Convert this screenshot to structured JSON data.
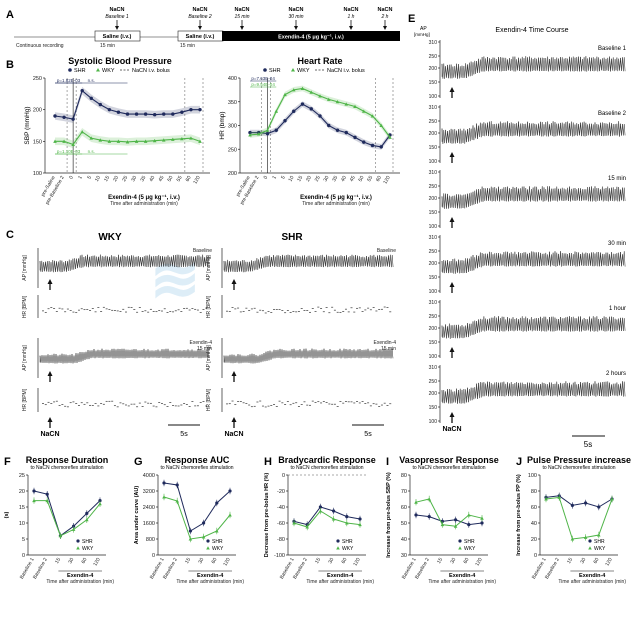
{
  "watermark": "meditlevant",
  "panel_a": {
    "label": "A",
    "events": [
      {
        "name": "NaCN",
        "sub": "Baseline 1"
      },
      {
        "name": "NaCN",
        "sub": "Baseline 2"
      },
      {
        "name": "NaCN",
        "sub": "15 min"
      },
      {
        "name": "NaCN",
        "sub": "30 min"
      },
      {
        "name": "NaCN",
        "sub": "1 h"
      },
      {
        "name": "NaCN",
        "sub": "2 h"
      }
    ],
    "saline1": "Saline (i.v.)",
    "saline2": "Saline (i.v.)",
    "exendin": "Exendin-4 (5 μg kg⁻¹, i.v.)",
    "cont": "Continuous recording",
    "dur1": "15 min",
    "dur2": "15 min"
  },
  "panel_b": {
    "label": "B",
    "sbp_title": "Systolic Blood Pressure",
    "hr_title": "Heart Rate",
    "legend": {
      "shr": "SHR",
      "wky": "WKY",
      "bolus": "NaCN i.v. bolus"
    },
    "sbp_ylabel": "SBP (mmHg)",
    "hr_ylabel": "HR (bmp)",
    "xlabel": "Exendin-4 (5 μg kg⁻¹, i.v.)",
    "xsub": "Time after administration (min)",
    "sbp_pvals": [
      "p=1.82E-03",
      "n.s.",
      "p=1.10E-03",
      "n.s."
    ],
    "hr_pvals": [
      "p=7.63E-04",
      "p=9.54E-04"
    ],
    "pre": [
      "pre-Saline",
      "pre-Baseline 2"
    ],
    "xticks": [
      "0",
      "1",
      "5",
      "10",
      "15",
      "20",
      "25",
      "30",
      "35",
      "40",
      "45",
      "50",
      "55",
      "60",
      "120"
    ]
  },
  "chart_data": [
    {
      "type": "line",
      "title": "Systolic Blood Pressure",
      "ylabel": "SBP (mmHg)",
      "ylim": [
        100,
        250
      ],
      "x": [
        "pre-Saline",
        "pre-Baseline 2",
        "0",
        "1",
        "5",
        "10",
        "15",
        "20",
        "25",
        "30",
        "35",
        "40",
        "45",
        "50",
        "55",
        "60",
        "120"
      ],
      "series": [
        {
          "name": "SHR",
          "values": [
            190,
            188,
            185,
            230,
            218,
            208,
            200,
            196,
            193,
            193,
            193,
            192,
            193,
            193,
            196,
            200,
            200
          ]
        },
        {
          "name": "WKY",
          "values": [
            150,
            150,
            145,
            165,
            155,
            152,
            150,
            150,
            149,
            150,
            150,
            151,
            152,
            153,
            154,
            155,
            150
          ]
        }
      ]
    },
    {
      "type": "line",
      "title": "Heart Rate",
      "ylabel": "HR (bmp)",
      "ylim": [
        200,
        400
      ],
      "x": [
        "pre-Saline",
        "pre-Baseline 2",
        "0",
        "1",
        "5",
        "10",
        "15",
        "20",
        "25",
        "30",
        "35",
        "40",
        "45",
        "50",
        "55",
        "60",
        "120"
      ],
      "series": [
        {
          "name": "SHR",
          "values": [
            285,
            285,
            283,
            290,
            310,
            330,
            345,
            335,
            320,
            300,
            290,
            285,
            275,
            265,
            258,
            255,
            280
          ]
        },
        {
          "name": "WKY",
          "values": [
            280,
            282,
            290,
            330,
            365,
            375,
            378,
            370,
            362,
            355,
            350,
            345,
            340,
            330,
            320,
            300,
            275
          ]
        }
      ]
    },
    {
      "type": "line",
      "title": "Response Duration",
      "ylabel": "(s)",
      "ylim": [
        0,
        25
      ],
      "x": [
        "Baseline 1",
        "Baseline 2",
        "15",
        "30",
        "60",
        "120"
      ],
      "series": [
        {
          "name": "SHR",
          "values": [
            20,
            19,
            6,
            9,
            13,
            17
          ]
        },
        {
          "name": "WKY",
          "values": [
            17,
            17,
            6,
            8,
            11,
            16
          ]
        }
      ]
    },
    {
      "type": "line",
      "title": "Response AUC",
      "ylabel": "Area under curve (AU)",
      "ylim": [
        0,
        4000
      ],
      "x": [
        "Baseline 1",
        "Baseline 2",
        "15",
        "30",
        "60",
        "120"
      ],
      "series": [
        {
          "name": "SHR",
          "values": [
            3600,
            3500,
            1200,
            1600,
            2600,
            3200
          ]
        },
        {
          "name": "WKY",
          "values": [
            2900,
            2700,
            800,
            900,
            1200,
            2000
          ]
        }
      ]
    },
    {
      "type": "line",
      "title": "Bradycardic Response",
      "ylabel": "Decrease from pre-bolus HR (%)",
      "ylim": [
        -100,
        0
      ],
      "x": [
        "Baseline 1",
        "Baseline 2",
        "15",
        "30",
        "60",
        "120"
      ],
      "series": [
        {
          "name": "SHR",
          "values": [
            -58,
            -62,
            -40,
            -45,
            -52,
            -55
          ]
        },
        {
          "name": "WKY",
          "values": [
            -60,
            -65,
            -45,
            -55,
            -60,
            -62
          ]
        }
      ]
    },
    {
      "type": "line",
      "title": "Vasopressor Response",
      "ylabel": "Increase from pre-bolus SBP (%)",
      "ylim": [
        30,
        80
      ],
      "x": [
        "Baseline 1",
        "Baseline 2",
        "15",
        "30",
        "60",
        "120"
      ],
      "series": [
        {
          "name": "SHR",
          "values": [
            55,
            54,
            51,
            52,
            49,
            50
          ]
        },
        {
          "name": "WKY",
          "values": [
            63,
            65,
            49,
            48,
            55,
            53
          ]
        }
      ]
    },
    {
      "type": "line",
      "title": "Pulse Pressure increase",
      "ylabel": "Increase from pre-bolus PP (%)",
      "ylim": [
        0,
        100
      ],
      "x": [
        "Baseline 1",
        "Baseline 2",
        "15",
        "30",
        "60",
        "120"
      ],
      "series": [
        {
          "name": "SHR",
          "values": [
            72,
            74,
            62,
            65,
            60,
            70
          ]
        },
        {
          "name": "WKY",
          "values": [
            70,
            72,
            20,
            22,
            25,
            70
          ]
        }
      ]
    }
  ],
  "panel_c": {
    "label": "C",
    "wky": "WKY",
    "shr": "SHR",
    "ap": "AP [mmHg]",
    "hr": "HR [BPM]",
    "baseline": "Baseline",
    "ex1": "Exendin-4",
    "ex2": "15 min",
    "nacn": "NaCN",
    "scale": "5s"
  },
  "panel_e": {
    "label": "E",
    "title": "Exendin-4 Time Course",
    "ap": "AP",
    "unit": "[mmHg]",
    "rows": [
      "Baseline 1",
      "Baseline 2",
      "15 min",
      "30 min",
      "1 hour",
      "2 hours"
    ],
    "yticks": [
      "310",
      "250",
      "200",
      "150",
      "100"
    ],
    "nacn": "NaCN",
    "scale": "5s"
  },
  "bottom": {
    "f": {
      "label": "F",
      "title": "Response Duration",
      "sub": "to NaCN chemoreflex stimulation",
      "ylabel": "(s)"
    },
    "g": {
      "label": "G",
      "title": "Response AUC",
      "sub": "to NaCN chemoreflex stimulation",
      "ylabel": "Area under curve (AU)"
    },
    "h": {
      "label": "H",
      "title": "Bradycardic Response",
      "sub": "to NaCN chemoreflex stimulation",
      "ylabel": "Decrease from pre-bolus HR (%)"
    },
    "i": {
      "label": "I",
      "title": "Vasopressor Response",
      "sub": "to NaCN chemoreflex stimulation",
      "ylabel": "Increase from pre-bolus SBP (%)"
    },
    "j": {
      "label": "J",
      "title": "Pulse Pressure increase",
      "sub": "to NaCN chemoreflex stimulation",
      "ylabel": "Increase from pre-bolus PP (%)"
    },
    "xlabel": "Exendin-4",
    "xsub": "Time after administration (min)",
    "xticks": [
      "Baseline 1",
      "Baseline 2",
      "15",
      "30",
      "60",
      "120"
    ],
    "shr": "SHR",
    "wky": "WKY"
  },
  "colors": {
    "shr": "#1f2a5c",
    "wky": "#4fb548",
    "black": "#111111"
  }
}
